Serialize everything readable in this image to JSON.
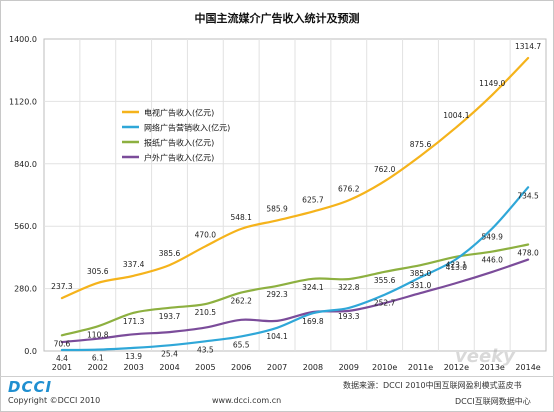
{
  "chart_data": {
    "type": "line",
    "title": "中国主流媒介广告收入统计及预测",
    "x": [
      "2001",
      "2002",
      "2003",
      "2004",
      "2005",
      "2006",
      "2007",
      "2008",
      "2009",
      "2010e",
      "2011e",
      "2012e",
      "2013e",
      "2014e"
    ],
    "yticks": [
      "0.0",
      "280.0",
      "560.0",
      "840.0",
      "1120.0",
      "1400.0"
    ],
    "ylim": [
      0,
      1400
    ],
    "grid": true,
    "legend": "upper-left-inside",
    "series": [
      {
        "name": "电视广告收入(亿元)",
        "color": "#f5b31b",
        "values": [
          237.3,
          305.6,
          337.4,
          385.6,
          470.0,
          548.1,
          585.9,
          625.7,
          676.2,
          762.0,
          875.6,
          1004.1,
          1149.0,
          1314.7
        ],
        "labels": [
          "237.3",
          "305.6",
          "337.4",
          "385.6",
          "470.0",
          "548.1",
          "585.9",
          "625.7",
          "676.2",
          "762.0",
          "875.6",
          "1004.1",
          "1149.0",
          "1314.7"
        ]
      },
      {
        "name": "网络广告营销收入(亿元)",
        "color": "#2fa7d8",
        "values": [
          4.4,
          6.1,
          13.9,
          25.4,
          43.5,
          65.5,
          104.1,
          169.8,
          193.3,
          252.7,
          331.0,
          413.0,
          549.9,
          734.5
        ],
        "labels": [
          "4.4",
          "6.1",
          "13.9",
          "25.4",
          "43.5",
          "65.5",
          "104.1",
          "169.8",
          "193.3",
          "252.7",
          "331.0",
          "413.0",
          "549.9",
          "734.5"
        ]
      },
      {
        "name": "报纸广告收入(亿元)",
        "color": "#8db040",
        "values": [
          70.6,
          110.8,
          171.3,
          193.7,
          210.5,
          262.2,
          292.3,
          324.1,
          322.8,
          355.6,
          385.0,
          423.1,
          446.0,
          478.0
        ],
        "labels": [
          "70.6",
          "110.8",
          "171.3",
          "193.7",
          "210.5",
          "262.2",
          "292.3",
          "324.1",
          "322.8",
          "355.6",
          "385.0",
          "423.1",
          "446.0",
          "478.0"
        ]
      },
      {
        "name": "户外广告收入(亿元)",
        "color": "#7b4c9a",
        "values": [
          40,
          55,
          75,
          85,
          105,
          140,
          135,
          175,
          180,
          215,
          260,
          305,
          355,
          410
        ],
        "labels": []
      }
    ]
  },
  "footer": {
    "logo": "DCCI",
    "copyright": "Copyright ©DCCI 2010",
    "website": "www.dcci.com.cn",
    "source": "数据来源：DCCI 2010中国互联网盈利模式蓝皮书",
    "org": "DCCI互联网数据中心",
    "watermark": "veeky"
  }
}
